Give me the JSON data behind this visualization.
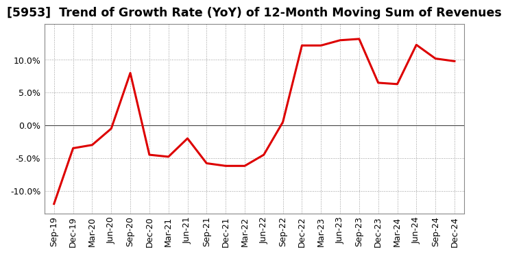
{
  "title": "[5953]  Trend of Growth Rate (YoY) of 12-Month Moving Sum of Revenues",
  "x_labels": [
    "Sep-19",
    "Dec-19",
    "Mar-20",
    "Jun-20",
    "Sep-20",
    "Dec-20",
    "Mar-21",
    "Jun-21",
    "Sep-21",
    "Dec-21",
    "Mar-22",
    "Jun-22",
    "Sep-22",
    "Dec-22",
    "Mar-23",
    "Jun-23",
    "Sep-23",
    "Dec-23",
    "Mar-24",
    "Jun-24",
    "Sep-24",
    "Dec-24"
  ],
  "y_values": [
    -12.0,
    -3.5,
    -3.0,
    -0.5,
    8.0,
    -4.5,
    -4.8,
    -2.0,
    -5.8,
    -6.2,
    -6.2,
    -4.5,
    0.5,
    12.2,
    12.2,
    13.0,
    13.2,
    6.5,
    6.3,
    12.3,
    10.2,
    9.8
  ],
  "line_color": "#dd0000",
  "background_color": "#ffffff",
  "plot_bg_color": "#ffffff",
  "grid_color": "#999999",
  "zero_line_color": "#444444",
  "border_color": "#888888",
  "ylim": [
    -13.5,
    15.5
  ],
  "yticks": [
    -10.0,
    -5.0,
    0.0,
    5.0,
    10.0
  ],
  "title_fontsize": 12.5,
  "tick_fontsize": 9,
  "line_width": 2.2
}
